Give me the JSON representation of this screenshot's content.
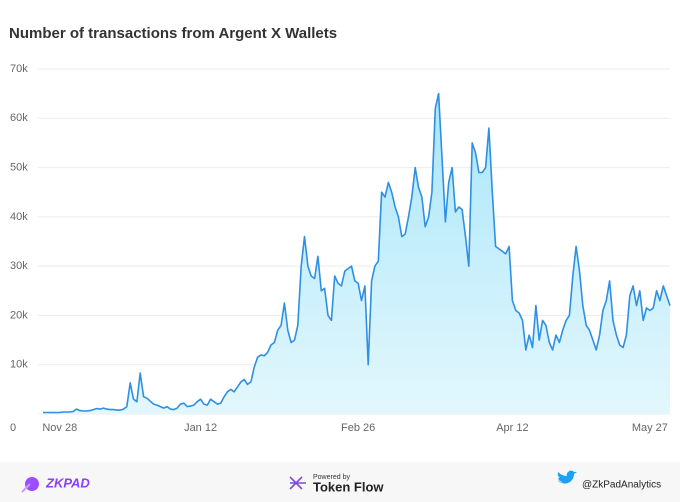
{
  "chart_data": {
    "type": "area",
    "title": "Number of transactions from Argent X Wallets",
    "categories": [
      null,
      null,
      null,
      null,
      null,
      "Nov 28",
      null,
      null,
      null,
      null,
      null,
      null,
      null,
      null,
      null,
      null,
      null,
      null,
      null,
      null,
      null,
      null,
      null,
      null,
      null,
      null,
      null,
      null,
      null,
      null,
      null,
      null,
      null,
      null,
      null,
      null,
      null,
      null,
      null,
      null,
      null,
      null,
      null,
      null,
      null,
      null,
      null,
      "Jan 12",
      null,
      null,
      null,
      null,
      null,
      null,
      null,
      null,
      null,
      null,
      null,
      null,
      null,
      null,
      null,
      null,
      null,
      null,
      null,
      null,
      null,
      null,
      null,
      null,
      null,
      null,
      null,
      null,
      null,
      null,
      null,
      null,
      null,
      null,
      null,
      null,
      null,
      null,
      null,
      null,
      null,
      null,
      null,
      null,
      null,
      null,
      "Feb 26",
      null,
      null,
      null,
      null,
      null,
      null,
      null,
      null,
      null,
      null,
      null,
      null,
      null,
      null,
      null,
      null,
      null,
      null,
      null,
      null,
      null,
      null,
      null,
      null,
      null,
      null,
      null,
      null,
      null,
      null,
      null,
      null,
      null,
      null,
      null,
      null,
      null,
      null,
      null,
      null,
      null,
      null,
      null,
      null,
      null,
      "Apr 12",
      null,
      null,
      null,
      null,
      null,
      null,
      null,
      null,
      null,
      null,
      null,
      null,
      null,
      null,
      null,
      null,
      null,
      null,
      null,
      null,
      null,
      null,
      null,
      null,
      null,
      null,
      null,
      null,
      null,
      null,
      null,
      null,
      null,
      null,
      null,
      null,
      null,
      null,
      null,
      null,
      "May 27",
      null,
      null,
      null,
      null,
      null,
      null
    ],
    "values": [
      300,
      300,
      300,
      300,
      300,
      300,
      400,
      400,
      400,
      500,
      1000,
      700,
      600,
      600,
      700,
      900,
      1100,
      1000,
      1200,
      1000,
      900,
      900,
      800,
      800,
      1000,
      1500,
      6300,
      3000,
      2500,
      8300,
      3500,
      3200,
      2600,
      2000,
      1800,
      1500,
      1200,
      1500,
      1000,
      900,
      1200,
      2000,
      2200,
      1500,
      1600,
      1800,
      2500,
      3000,
      2000,
      1800,
      3000,
      2500,
      2000,
      2200,
      3500,
      4500,
      5000,
      4500,
      5500,
      6500,
      7000,
      6000,
      6500,
      9500,
      11500,
      12000,
      11800,
      12500,
      14000,
      14500,
      17000,
      18000,
      22500,
      17000,
      14500,
      15000,
      18000,
      30000,
      36000,
      30000,
      28000,
      27500,
      32000,
      25000,
      25500,
      20000,
      19000,
      28000,
      26500,
      26000,
      29000,
      29500,
      30000,
      27000,
      26500,
      23000,
      26000,
      10000,
      27000,
      30000,
      31000,
      45000,
      44000,
      47000,
      45000,
      42000,
      40000,
      36000,
      36500,
      40000,
      44000,
      50000,
      46000,
      44000,
      38000,
      40000,
      45000,
      62000,
      65000,
      52000,
      39000,
      47000,
      50000,
      41000,
      42000,
      41500,
      36000,
      30000,
      55000,
      53000,
      49000,
      49000,
      50000,
      58000,
      45000,
      34000,
      33500,
      33000,
      32500,
      34000,
      23000,
      21000,
      20500,
      19000,
      13000,
      16000,
      13500,
      22000,
      15000,
      19000,
      18000,
      14500,
      13000,
      16000,
      14500,
      17000,
      19000,
      20000,
      28000,
      34000,
      29000,
      22000,
      18000,
      17000,
      15000,
      13000,
      16000,
      21000,
      23000,
      27000,
      19000,
      16000,
      14000,
      13500,
      16000,
      24000,
      26000,
      22000,
      25000,
      19000,
      21500,
      21000,
      21500,
      25000,
      23000,
      26000,
      24000,
      22000
    ],
    "color": "#2f8fe3",
    "ylim": [
      0,
      70000
    ],
    "yticks": [
      0,
      {
        "value": 10000,
        "label": "10k"
      },
      {
        "value": 20000,
        "label": "20k"
      },
      {
        "value": 30000,
        "label": "30k"
      },
      {
        "value": 40000,
        "label": "40k"
      },
      {
        "value": 50000,
        "label": "50k"
      },
      {
        "value": 60000,
        "label": "60k"
      },
      {
        "value": 70000,
        "label": "70k"
      }
    ],
    "grid": true
  },
  "footer": {
    "brand": "ZKPAD",
    "powered_by": "Powered by",
    "provider": "Token Flow",
    "handle": "@ZkPadAnalytics"
  }
}
